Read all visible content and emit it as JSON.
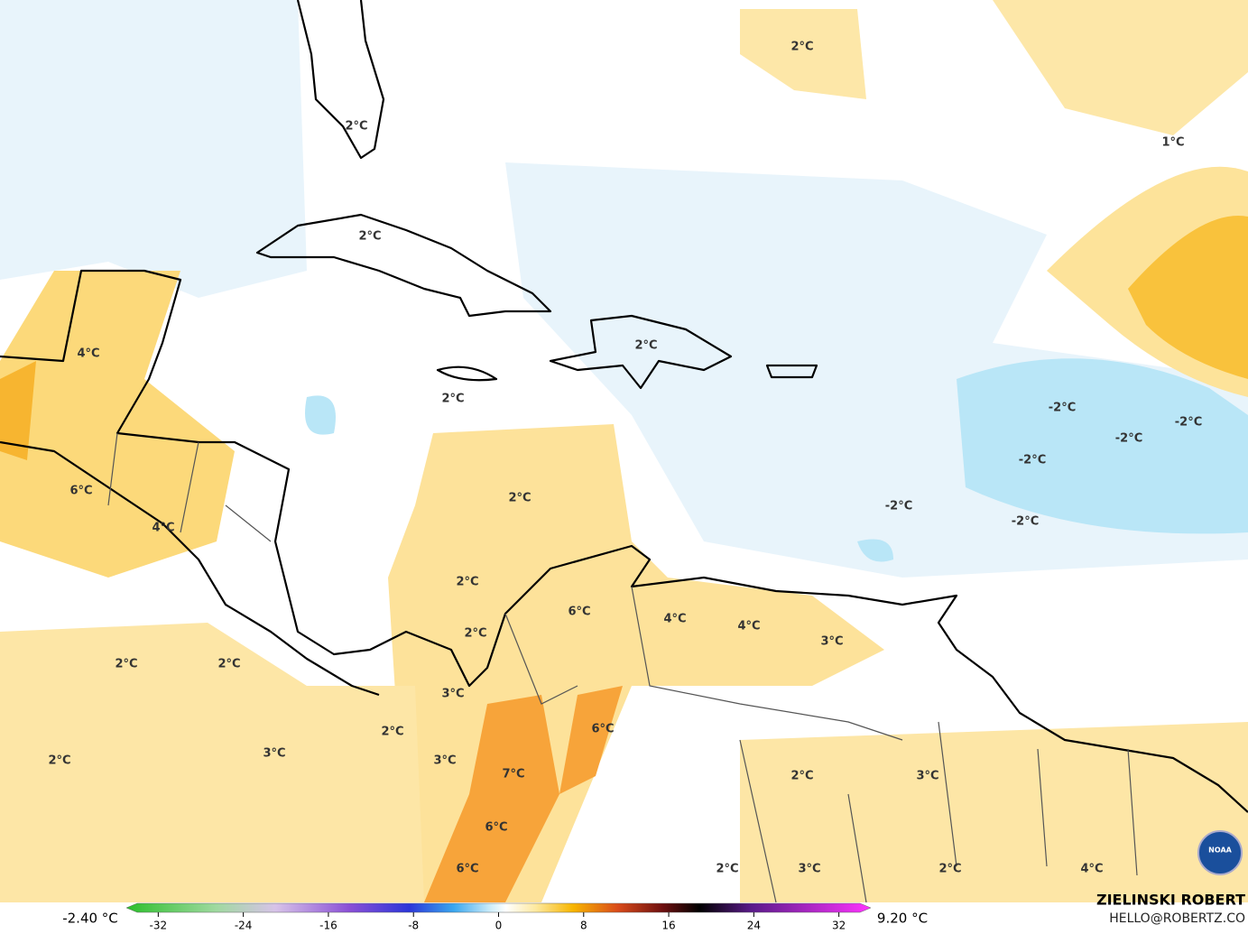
{
  "map": {
    "contour_labels": [
      "2°C",
      "2°C",
      "1°C",
      "2°C",
      "4°C",
      "2°C",
      "2°C",
      "-2°C",
      "-2°C",
      "-2°C",
      "-2°C",
      "6°C",
      "2°C",
      "-2°C",
      "4°C",
      "-2°C",
      "2°C",
      "6°C",
      "4°C",
      "4°C",
      "2°C",
      "3°C",
      "2°C",
      "2°C",
      "3°C",
      "6°C",
      "2°C",
      "3°C",
      "2°C",
      "3°C",
      "7°C",
      "2°C",
      "3°C",
      "6°C",
      "2°C",
      "3°C",
      "2°C",
      "4°C",
      "6°C"
    ],
    "colorbar": {
      "min_label": "-2.40 °C",
      "max_label": "9.20 °C",
      "range": [
        -35,
        35
      ],
      "ticks": [
        -32,
        -24,
        -16,
        -8,
        0,
        8,
        16,
        24,
        32
      ]
    },
    "credit": {
      "author": "ZIELINSKI ROBERT",
      "contact": "HELLO@ROBERTZ.CO",
      "logo": "NOAA"
    }
  }
}
